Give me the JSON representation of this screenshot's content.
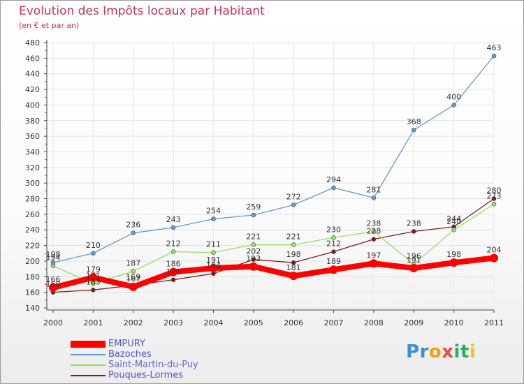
{
  "chart_data": {
    "type": "line",
    "title": "Evolution des Impôts locaux par Habitant",
    "subtitle": "(en € et par an)",
    "x": [
      "2000",
      "2001",
      "2002",
      "2003",
      "2004",
      "2005",
      "2006",
      "2007",
      "2008",
      "2009",
      "2010",
      "2011"
    ],
    "yticks": [
      140,
      160,
      180,
      200,
      220,
      240,
      260,
      280,
      300,
      320,
      340,
      360,
      380,
      400,
      420,
      440,
      460,
      480
    ],
    "ylim": [
      140,
      480
    ],
    "grid": true,
    "legend_position": "bottom-left",
    "series": [
      {
        "name": "Pouques-Lormes",
        "color": "#7a1f1f",
        "values": [
          160,
          163,
          169,
          176,
          184,
          202,
          198,
          212,
          228,
          238,
          244,
          280
        ],
        "labels": [
          "160",
          "163",
          "169",
          "176",
          "184",
          "202",
          "198",
          "212",
          "228",
          "238",
          "244",
          "280"
        ]
      },
      {
        "name": "Saint-Martin-du-Puy",
        "color": "#99dd66",
        "values": [
          194,
          171,
          187,
          212,
          211,
          221,
          221,
          230,
          238,
          196,
          240,
          273
        ],
        "labels": [
          "194",
          "171",
          "187",
          "212",
          "211",
          "221",
          "221",
          "230",
          "238",
          "196",
          "240",
          "273"
        ]
      },
      {
        "name": "Bazoches",
        "color": "#6699cc",
        "values": [
          198,
          210,
          236,
          243,
          254,
          259,
          272,
          294,
          281,
          368,
          400,
          463
        ],
        "labels": [
          "198",
          "210",
          "236",
          "243",
          "254",
          "259",
          "272",
          "294",
          "281",
          "368",
          "400",
          "463"
        ]
      },
      {
        "name": "EMPURY",
        "color": "#ff0000",
        "values": [
          166,
          179,
          167,
          186,
          191,
          193,
          181,
          189,
          197,
          191,
          198,
          204
        ],
        "labels": [
          "166",
          "179",
          "167",
          "186",
          "191",
          "193",
          "181",
          "189",
          "197",
          "191",
          "198",
          "204"
        ]
      }
    ],
    "legend": [
      {
        "name": "EMPURY",
        "color": "#ff0000"
      },
      {
        "name": "Bazoches",
        "color": "#6699cc"
      },
      {
        "name": "Saint-Martin-du-Puy",
        "color": "#99dd66"
      },
      {
        "name": "Pouques-Lormes",
        "color": "#7a1f1f"
      }
    ]
  },
  "brand": {
    "letters": [
      {
        "ch": "P",
        "color": "#3a8fd8"
      },
      {
        "ch": "r",
        "color": "#3a8fd8"
      },
      {
        "ch": "o",
        "color": "#f39c12"
      },
      {
        "ch": "x",
        "color": "#e74c3c"
      },
      {
        "ch": "i",
        "color": "#27ae60"
      },
      {
        "ch": "t",
        "color": "#27ae60"
      },
      {
        "ch": "i",
        "color": "#f1c40f"
      }
    ]
  }
}
